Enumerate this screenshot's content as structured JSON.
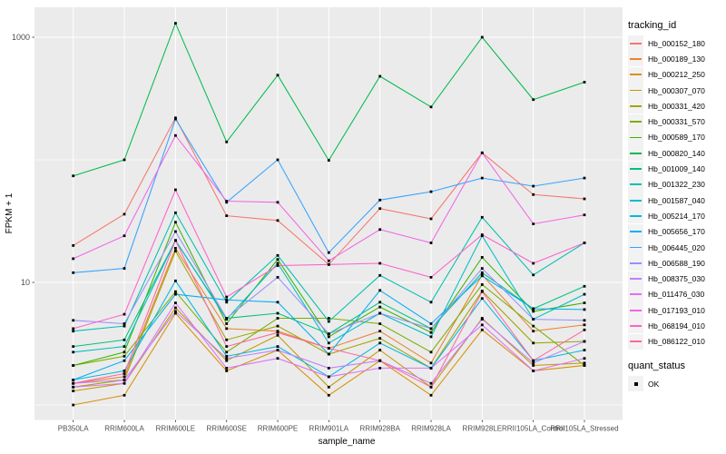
{
  "chart": {
    "legend_title": "tracking_id",
    "quant_legend_title": "quant_status",
    "quant_legend_items": [
      "OK"
    ]
  },
  "colors": {
    "panel_bg": "#EBEBEB",
    "gridline": "#FFFFFF",
    "tick_label": "#4D4D4D",
    "axis_title": "#000000",
    "tick_mark": "#333333",
    "point": "#000000",
    "legend_key_bg": "#F2F2F2"
  },
  "chart_data": {
    "type": "line",
    "title": "",
    "xlabel": "sample_name",
    "ylabel": "FPKM + 1",
    "y_scale": "log10",
    "y_tick_labels": [
      "1000",
      "10"
    ],
    "y_tick_values": [
      1000,
      10
    ],
    "y_major_gridlines": [
      10,
      1000
    ],
    "y_minor_gridlines": [
      1,
      100
    ],
    "ylim": [
      0.76,
      1750
    ],
    "grid": true,
    "legend_position": "right",
    "marker": "black-square",
    "categories": [
      "PB350LA",
      "RRIM600LA",
      "RRIM600LE",
      "RRIM600SE",
      "RRIM600PE",
      "RRIM901LA",
      "RRIM928BA",
      "RRIM928LA",
      "RRIM928LE",
      "RRII105LA_Control",
      "RRII105LA_Stressed"
    ],
    "series": [
      {
        "name": "Hb_000152_180",
        "color": "#F8766D",
        "values": [
          20,
          36,
          220,
          35,
          32,
          14,
          40,
          33,
          114,
          52,
          48
        ]
      },
      {
        "name": "Hb_000189_130",
        "color": "#EA8331",
        "values": [
          1.5,
          1.7,
          19,
          4.2,
          4.0,
          2.9,
          4.0,
          2.2,
          11.5,
          4.0,
          4.5
        ]
      },
      {
        "name": "Hb_000212_250",
        "color": "#D89000",
        "values": [
          1.0,
          1.2,
          5.6,
          1.9,
          2.8,
          1.2,
          2.3,
          1.2,
          4.1,
          1.9,
          2.1
        ]
      },
      {
        "name": "Hb_000307_070",
        "color": "#C09B00",
        "values": [
          1.3,
          1.5,
          6.2,
          2.3,
          3.7,
          1.4,
          2.8,
          1.4,
          5.1,
          2.1,
          2.2
        ]
      },
      {
        "name": "Hb_000331_420",
        "color": "#A3A500",
        "values": [
          1.4,
          1.6,
          18,
          3.4,
          4.4,
          2.6,
          3.5,
          2.0,
          8.5,
          3.2,
          3.3
        ]
      },
      {
        "name": "Hb_000331_570",
        "color": "#7CAE00",
        "values": [
          2.1,
          2.5,
          8.4,
          2.7,
          5.1,
          5.1,
          4.6,
          2.7,
          9.6,
          4.4,
          2.1
        ]
      },
      {
        "name": "Hb_000589_170",
        "color": "#39B600",
        "values": [
          2.1,
          2.7,
          31,
          4.6,
          15.4,
          3.6,
          6.3,
          3.9,
          16,
          5.8,
          6.8
        ]
      },
      {
        "name": "Hb_000820_140",
        "color": "#00BB4E",
        "values": [
          74,
          100,
          1300,
          140,
          490,
          99,
          480,
          270,
          1000,
          310,
          430
        ]
      },
      {
        "name": "Hb_001009_140",
        "color": "#00C081",
        "values": [
          3.0,
          3.4,
          22,
          5.1,
          5.6,
          3.8,
          6.9,
          4.2,
          12,
          6.1,
          9.3
        ]
      },
      {
        "name": "Hb_001322_230",
        "color": "#00C0AF",
        "values": [
          4.0,
          4.4,
          37,
          6.9,
          16.6,
          4.8,
          11.4,
          6.9,
          34,
          11.5,
          21
        ]
      },
      {
        "name": "Hb_001587_040",
        "color": "#00BFC4",
        "values": [
          2.7,
          3.0,
          22,
          5.0,
          14.3,
          3.2,
          5.6,
          3.6,
          24,
          5.0,
          8.0
        ]
      },
      {
        "name": "Hb_005214_170",
        "color": "#00BAE0",
        "values": [
          1.6,
          1.9,
          10.3,
          2.5,
          3.0,
          1.7,
          3.2,
          2.0,
          7.4,
          2.3,
          2.8
        ]
      },
      {
        "name": "Hb_005656_170",
        "color": "#00B0F6",
        "values": [
          1.6,
          2.3,
          8.0,
          7.2,
          6.9,
          2.6,
          8.6,
          4.6,
          11.3,
          6.1,
          6.0
        ]
      },
      {
        "name": "Hb_006445_020",
        "color": "#35A2FF",
        "values": [
          12,
          13,
          215,
          45,
          100,
          17.5,
          47,
          55,
          71,
          61,
          71
        ]
      },
      {
        "name": "Hb_006588_190",
        "color": "#9590FF",
        "values": [
          4.9,
          4.6,
          26,
          5.1,
          11,
          3.8,
          5.6,
          4.2,
          13,
          5.0,
          4.9
        ]
      },
      {
        "name": "Hb_008375_030",
        "color": "#BF80FF",
        "values": [
          1.5,
          1.6,
          5.8,
          2.4,
          2.8,
          2.0,
          2.3,
          1.5,
          5.0,
          2.2,
          3.3
        ]
      },
      {
        "name": "Hb_011476_030",
        "color": "#DC71FA",
        "values": [
          1.4,
          1.5,
          6.8,
          2.0,
          2.4,
          1.7,
          2.0,
          2.0,
          4.5,
          1.9,
          2.4
        ]
      },
      {
        "name": "Hb_017193_010",
        "color": "#F166E8",
        "values": [
          15.6,
          24,
          158,
          46,
          45,
          15,
          27,
          21,
          114,
          30,
          35.5
        ]
      },
      {
        "name": "Hb_068194_010",
        "color": "#FF61CC",
        "values": [
          4.2,
          5.5,
          57,
          7.6,
          13.7,
          14,
          14.3,
          11,
          24.5,
          14.3,
          21
        ]
      },
      {
        "name": "Hb_086122_010",
        "color": "#FF689F",
        "values": [
          1.5,
          1.8,
          22,
          3.0,
          3.9,
          2.9,
          2.3,
          1.4,
          8.4,
          2.3,
          4.1
        ]
      }
    ]
  }
}
